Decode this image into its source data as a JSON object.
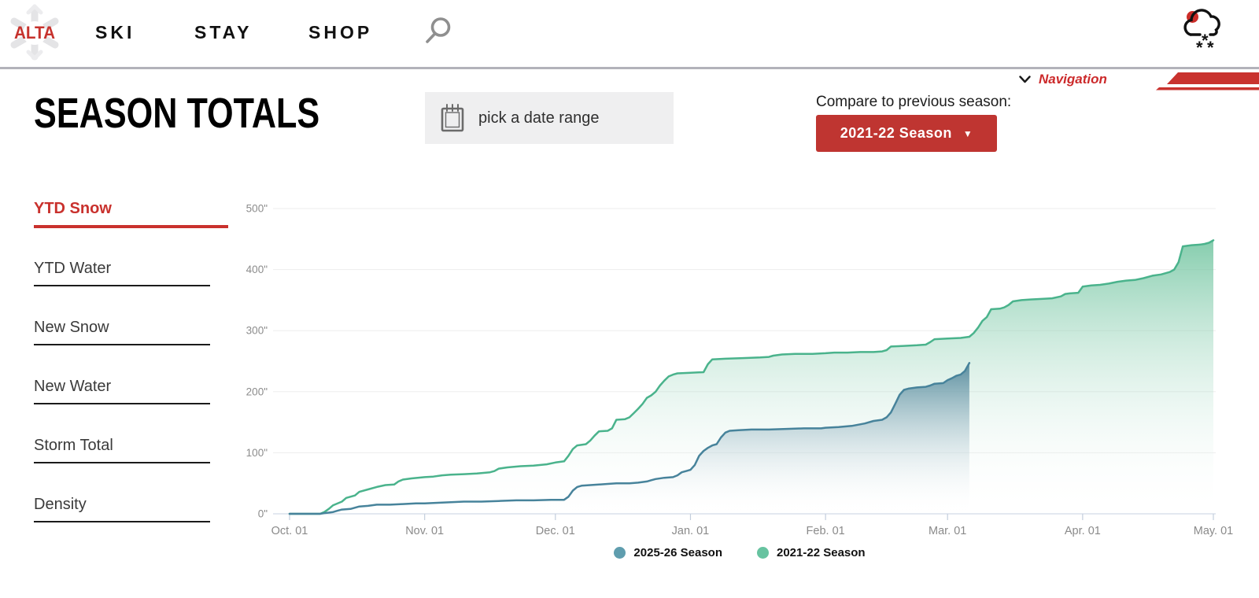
{
  "header": {
    "logo_text": "ALTA",
    "nav": [
      {
        "label": "SKI"
      },
      {
        "label": "STAY"
      },
      {
        "label": "SHOP"
      }
    ]
  },
  "subnav": {
    "navigation_label": "Navigation"
  },
  "page": {
    "title": "SEASON TOTALS",
    "date_range_label": "pick a date range",
    "compare_label": "Compare to previous season:",
    "season_select_value": "2021-22 Season",
    "season_select_caret": "▼"
  },
  "tabs": [
    {
      "label": "YTD Snow",
      "active": true
    },
    {
      "label": "YTD Water",
      "active": false
    },
    {
      "label": "New Snow",
      "active": false
    },
    {
      "label": "New Water",
      "active": false
    },
    {
      "label": "Storm Total",
      "active": false
    },
    {
      "label": "Density",
      "active": false
    }
  ],
  "colors": {
    "accent_red": "#bf3531",
    "tab_active_red": "#c9312d",
    "header_border_gray": "#b2b2ba"
  },
  "chart_data": {
    "type": "area",
    "title": "YTD Snow — cumulative inches by date",
    "units": "inches",
    "grid": true,
    "legend_position": "bottom",
    "y_axis": {
      "range": [
        0,
        500
      ],
      "tick_values": [
        0,
        100,
        200,
        300,
        400,
        500
      ],
      "ticks": [
        "0\"",
        "100\"",
        "200\"",
        "300\"",
        "400\"",
        "500\""
      ]
    },
    "x_axis": {
      "range_days": [
        0,
        212
      ],
      "label_days": [
        0,
        31,
        61,
        92,
        123,
        151,
        182,
        212
      ],
      "labels": [
        "Oct. 01",
        "Nov. 01",
        "Dec. 01",
        "Jan. 01",
        "Feb. 01",
        "Mar. 01",
        "Apr. 01",
        "May. 01"
      ]
    },
    "series": [
      {
        "name": "2025-26 Season",
        "color": "#47839b",
        "dot_color": "#5f9dae",
        "fill_top": "rgba(70,126,148,0.85)",
        "fill_bottom": "rgba(255,255,255,0)",
        "points": [
          [
            0,
            0
          ],
          [
            7,
            0
          ],
          [
            8,
            1
          ],
          [
            10,
            3
          ],
          [
            11,
            5
          ],
          [
            12,
            7
          ],
          [
            14,
            8
          ],
          [
            16,
            12
          ],
          [
            18,
            13
          ],
          [
            20,
            15
          ],
          [
            23,
            15
          ],
          [
            26,
            16
          ],
          [
            29,
            17
          ],
          [
            31,
            17
          ],
          [
            34,
            18
          ],
          [
            37,
            19
          ],
          [
            40,
            20
          ],
          [
            44,
            20
          ],
          [
            48,
            21
          ],
          [
            52,
            22
          ],
          [
            56,
            22
          ],
          [
            60,
            23
          ],
          [
            63,
            23
          ],
          [
            64,
            28
          ],
          [
            65,
            38
          ],
          [
            66,
            44
          ],
          [
            67,
            46
          ],
          [
            69,
            47
          ],
          [
            71,
            48
          ],
          [
            73,
            49
          ],
          [
            75,
            50
          ],
          [
            78,
            50
          ],
          [
            80,
            51
          ],
          [
            82,
            53
          ],
          [
            83,
            55
          ],
          [
            84,
            57
          ],
          [
            86,
            59
          ],
          [
            88,
            60
          ],
          [
            89,
            63
          ],
          [
            90,
            68
          ],
          [
            91,
            70
          ],
          [
            92,
            72
          ],
          [
            93,
            80
          ],
          [
            94,
            95
          ],
          [
            95,
            103
          ],
          [
            96,
            108
          ],
          [
            97,
            112
          ],
          [
            98,
            114
          ],
          [
            99,
            125
          ],
          [
            100,
            133
          ],
          [
            101,
            136
          ],
          [
            103,
            137
          ],
          [
            106,
            138
          ],
          [
            110,
            138
          ],
          [
            114,
            139
          ],
          [
            118,
            140
          ],
          [
            122,
            140
          ],
          [
            123,
            141
          ],
          [
            126,
            142
          ],
          [
            129,
            144
          ],
          [
            132,
            148
          ],
          [
            134,
            152
          ],
          [
            136,
            154
          ],
          [
            137,
            158
          ],
          [
            138,
            166
          ],
          [
            139,
            180
          ],
          [
            140,
            195
          ],
          [
            141,
            203
          ],
          [
            142,
            205
          ],
          [
            144,
            207
          ],
          [
            146,
            208
          ],
          [
            147,
            210
          ],
          [
            148,
            213
          ],
          [
            150,
            214
          ],
          [
            151,
            219
          ],
          [
            152,
            222
          ],
          [
            153,
            226
          ],
          [
            154,
            228
          ],
          [
            155,
            234
          ],
          [
            156,
            247
          ]
        ]
      },
      {
        "name": "2021-22 Season",
        "color": "#4ab38c",
        "dot_color": "#67c3a0",
        "fill_top": "rgba(100,191,151,0.78)",
        "fill_bottom": "rgba(255,255,255,0)",
        "points": [
          [
            0,
            0
          ],
          [
            7,
            0
          ],
          [
            8,
            3
          ],
          [
            9,
            8
          ],
          [
            10,
            14
          ],
          [
            12,
            20
          ],
          [
            13,
            26
          ],
          [
            15,
            30
          ],
          [
            16,
            36
          ],
          [
            18,
            40
          ],
          [
            20,
            44
          ],
          [
            22,
            47
          ],
          [
            24,
            48
          ],
          [
            25,
            53
          ],
          [
            26,
            56
          ],
          [
            28,
            58
          ],
          [
            31,
            60
          ],
          [
            33,
            61
          ],
          [
            35,
            63
          ],
          [
            37,
            64
          ],
          [
            40,
            65
          ],
          [
            43,
            66
          ],
          [
            46,
            68
          ],
          [
            47,
            70
          ],
          [
            48,
            74
          ],
          [
            50,
            76
          ],
          [
            53,
            78
          ],
          [
            56,
            79
          ],
          [
            59,
            81
          ],
          [
            61,
            84
          ],
          [
            63,
            86
          ],
          [
            64,
            95
          ],
          [
            65,
            106
          ],
          [
            66,
            112
          ],
          [
            68,
            114
          ],
          [
            69,
            120
          ],
          [
            70,
            128
          ],
          [
            71,
            135
          ],
          [
            73,
            136
          ],
          [
            74,
            140
          ],
          [
            75,
            154
          ],
          [
            77,
            155
          ],
          [
            78,
            158
          ],
          [
            79,
            165
          ],
          [
            80,
            172
          ],
          [
            81,
            180
          ],
          [
            82,
            190
          ],
          [
            83,
            194
          ],
          [
            84,
            200
          ],
          [
            85,
            210
          ],
          [
            86,
            218
          ],
          [
            87,
            225
          ],
          [
            88,
            228
          ],
          [
            89,
            230
          ],
          [
            92,
            231
          ],
          [
            95,
            232
          ],
          [
            96,
            245
          ],
          [
            97,
            253
          ],
          [
            100,
            254
          ],
          [
            104,
            255
          ],
          [
            108,
            256
          ],
          [
            110,
            257
          ],
          [
            111,
            259
          ],
          [
            113,
            261
          ],
          [
            116,
            262
          ],
          [
            120,
            262
          ],
          [
            123,
            263
          ],
          [
            125,
            264
          ],
          [
            128,
            264
          ],
          [
            131,
            265
          ],
          [
            134,
            265
          ],
          [
            136,
            266
          ],
          [
            137,
            268
          ],
          [
            138,
            274
          ],
          [
            141,
            275
          ],
          [
            144,
            276
          ],
          [
            146,
            277
          ],
          [
            147,
            281
          ],
          [
            148,
            286
          ],
          [
            151,
            287
          ],
          [
            154,
            288
          ],
          [
            156,
            290
          ],
          [
            157,
            296
          ],
          [
            158,
            305
          ],
          [
            159,
            316
          ],
          [
            160,
            322
          ],
          [
            161,
            335
          ],
          [
            163,
            336
          ],
          [
            164,
            338
          ],
          [
            165,
            342
          ],
          [
            166,
            348
          ],
          [
            168,
            350
          ],
          [
            170,
            351
          ],
          [
            173,
            352
          ],
          [
            175,
            353
          ],
          [
            177,
            356
          ],
          [
            178,
            360
          ],
          [
            179,
            361
          ],
          [
            181,
            362
          ],
          [
            182,
            372
          ],
          [
            184,
            374
          ],
          [
            186,
            375
          ],
          [
            188,
            377
          ],
          [
            190,
            380
          ],
          [
            192,
            382
          ],
          [
            194,
            383
          ],
          [
            196,
            386
          ],
          [
            198,
            390
          ],
          [
            200,
            392
          ],
          [
            202,
            396
          ],
          [
            203,
            400
          ],
          [
            204,
            412
          ],
          [
            205,
            438
          ],
          [
            207,
            440
          ],
          [
            209,
            441
          ],
          [
            210,
            442
          ],
          [
            211,
            444
          ],
          [
            212,
            448
          ]
        ]
      }
    ]
  }
}
